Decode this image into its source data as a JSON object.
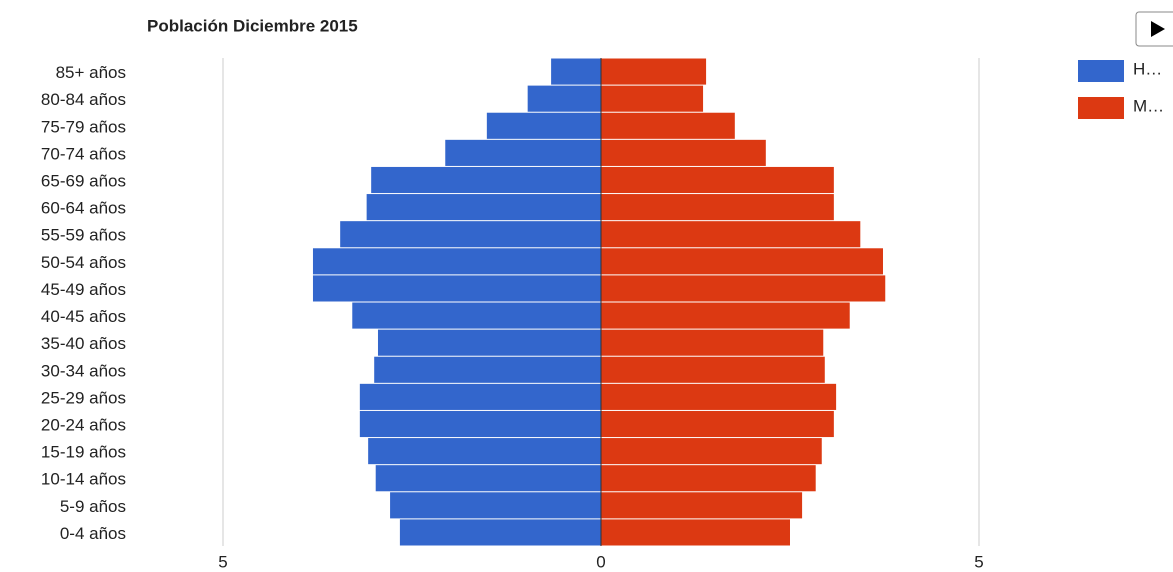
{
  "chart_data": {
    "type": "pyramid",
    "title": "Población Diciembre 2015",
    "categories": [
      "85+ años",
      "80-84 años",
      "75-79 años",
      "70-74 años",
      "65-69 años",
      "60-64 años",
      "55-59 años",
      "50-54 años",
      "45-49 años",
      "40-45 años",
      "35-40 años",
      "30-34 años",
      "25-29 años",
      "20-24 años",
      "15-19 años",
      "10-14 años",
      "5-9 años",
      "0-4 años"
    ],
    "series": [
      {
        "name": "H…",
        "color": "#3366cc",
        "values": [
          -0.66,
          -0.97,
          -1.51,
          -2.06,
          -3.04,
          -3.1,
          -3.45,
          -3.81,
          -3.81,
          -3.29,
          -2.95,
          -3.0,
          -3.19,
          -3.19,
          -3.08,
          -2.98,
          -2.79,
          -2.66
        ]
      },
      {
        "name": "M…",
        "color": "#dc3912",
        "values": [
          1.39,
          1.35,
          1.77,
          2.18,
          3.08,
          3.08,
          3.43,
          3.73,
          3.76,
          3.29,
          2.94,
          2.96,
          3.11,
          3.08,
          2.92,
          2.84,
          2.66,
          2.5
        ]
      }
    ],
    "xlim": [
      -6,
      6
    ],
    "xticks": [
      {
        "value": -5,
        "label": "5"
      },
      0,
      5
    ],
    "grid": true,
    "legend": "right"
  }
}
